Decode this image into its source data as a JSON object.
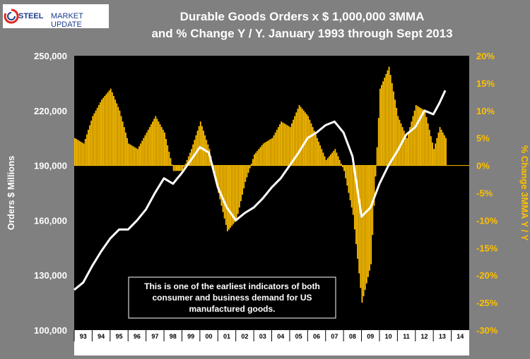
{
  "logo": {
    "brand_part1": "STEEL",
    "brand_part2": "MARKET UPDATE",
    "accent_color": "#e0281e"
  },
  "title": {
    "line1": "Durable Goods Orders x $ 1,000,000 3MMA",
    "line2": "and % Change Y / Y. January 1993 through Sept 2013"
  },
  "annotation": {
    "line1": "This is one of the earliest indicators of both",
    "line2": "consumer and business demand for US",
    "line3": "manufactured goods."
  },
  "chart_data": {
    "type": "bar+line",
    "title": "Durable Goods Orders x $ 1,000,000 3MMA and % Change Y / Y. January 1993 through Sept 2013",
    "ylabel": "Orders $ Millions",
    "y2label": "% Change 3MMA Y / Y",
    "ylim": [
      100000,
      250000
    ],
    "y2lim": [
      -30,
      20
    ],
    "y_ticks": [
      "100,000",
      "130,000",
      "160,000",
      "190,000",
      "220,000",
      "250,000"
    ],
    "y2_ticks": [
      "-30%",
      "-25%",
      "-20%",
      "-15%",
      "-10%",
      "-5%",
      "0%",
      "5%",
      "10%",
      "15%",
      "20%"
    ],
    "x_ticks": [
      "93",
      "94",
      "95",
      "96",
      "97",
      "98",
      "99",
      "00",
      "01",
      "02",
      "03",
      "04",
      "05",
      "06",
      "07",
      "08",
      "09",
      "10",
      "11",
      "12",
      "13",
      "14"
    ],
    "x_range": [
      "1993-01",
      "2014-12"
    ],
    "colors": {
      "bars": "#ffc000",
      "line": "#ffffff",
      "plot_background": "#000000",
      "page_background": "#808080"
    },
    "series": [
      {
        "type": "line",
        "axis": "left",
        "x": [
          "1993-01",
          "1993-07",
          "1994-01",
          "1994-07",
          "1995-01",
          "1995-07",
          "1996-01",
          "1996-07",
          "1997-01",
          "1997-07",
          "1998-01",
          "1998-07",
          "1999-01",
          "1999-07",
          "2000-01",
          "2000-07",
          "2001-01",
          "2001-07",
          "2002-01",
          "2002-07",
          "2003-01",
          "2003-07",
          "2004-01",
          "2004-07",
          "2005-01",
          "2005-07",
          "2006-01",
          "2006-07",
          "2007-01",
          "2007-07",
          "2008-01",
          "2008-07",
          "2009-01",
          "2009-07",
          "2010-01",
          "2010-07",
          "2011-01",
          "2011-07",
          "2012-01",
          "2012-07",
          "2013-01",
          "2013-05",
          "2013-09"
        ],
        "values": [
          122000,
          126000,
          135000,
          143000,
          150000,
          155000,
          155000,
          160000,
          166000,
          175000,
          183000,
          180000,
          186000,
          193000,
          200000,
          197000,
          178000,
          167000,
          160000,
          164000,
          167000,
          172000,
          178000,
          183000,
          190000,
          197000,
          205000,
          208000,
          212000,
          214000,
          208000,
          195000,
          162000,
          167000,
          180000,
          190000,
          198000,
          207000,
          211000,
          220000,
          218000,
          224000,
          231000
        ]
      },
      {
        "type": "bar",
        "axis": "right",
        "x": [
          "1993-01",
          "1993-07",
          "1994-01",
          "1994-07",
          "1995-01",
          "1995-07",
          "1996-01",
          "1996-07",
          "1997-01",
          "1997-07",
          "1998-01",
          "1998-07",
          "1999-01",
          "1999-07",
          "2000-01",
          "2000-07",
          "2001-01",
          "2001-07",
          "2002-01",
          "2002-07",
          "2003-01",
          "2003-07",
          "2004-01",
          "2004-07",
          "2005-01",
          "2005-07",
          "2006-01",
          "2006-07",
          "2007-01",
          "2007-07",
          "2008-01",
          "2008-07",
          "2009-01",
          "2009-07",
          "2010-01",
          "2010-07",
          "2011-01",
          "2011-07",
          "2012-01",
          "2012-07",
          "2013-01",
          "2013-05",
          "2013-09"
        ],
        "values": [
          5,
          4,
          9,
          12,
          14,
          10,
          4,
          3,
          6,
          9,
          6,
          -1,
          -1,
          3,
          8,
          3,
          -5,
          -12,
          -10,
          -3,
          2,
          4,
          5,
          8,
          7,
          11,
          9,
          5,
          1,
          3,
          -1,
          -9,
          -25,
          -18,
          14,
          18,
          9,
          5,
          11,
          10,
          3,
          7,
          5
        ]
      }
    ]
  }
}
